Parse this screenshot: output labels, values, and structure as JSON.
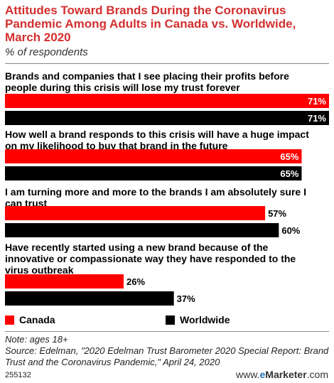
{
  "title": "Attitudes Toward Brands During the Coronavirus Pandemic Among Adults in Canada vs. Worldwide, March 2020",
  "subtitle": "% of respondents",
  "colors": {
    "canada": "#ff0000",
    "worldwide": "#000000",
    "title": "#d32f2f"
  },
  "legend": [
    {
      "name": "Canada",
      "color": "#ff0000"
    },
    {
      "name": "Worldwide",
      "color": "#000000"
    }
  ],
  "chart_data": {
    "type": "bar",
    "orientation": "horizontal",
    "categories": [
      "Brands and companies that I see placing their profits before people during this crisis will lose my trust forever",
      "How well a brand responds to this crisis will have a huge impact on my likelihood to buy that brand in the future",
      "I am turning more and more to the brands I am absolutely sure I can trust",
      "Have recently started using a new brand because of the innovative or compassionate way they have responded to the virus outbreak"
    ],
    "series": [
      {
        "name": "Canada",
        "values": [
          71,
          65,
          57,
          26
        ]
      },
      {
        "name": "Worldwide",
        "values": [
          71,
          65,
          60,
          37
        ]
      }
    ],
    "value_labels": {
      "Canada": [
        "71%",
        "65%",
        "57%",
        "26%"
      ],
      "Worldwide": [
        "71%",
        "65%",
        "60%",
        "37%"
      ]
    },
    "xlim": [
      0,
      71
    ],
    "grid": false,
    "legend_position": "bottom-left"
  },
  "footer": {
    "note": "Note: ages 18+",
    "source": "Source: Edelman, \"2020 Edelman Trust Barometer 2020 Special Report: Brand Trust and the Coronavirus Pandemic,\" April 24, 2020",
    "code": "255132",
    "brand_prefix": "www.",
    "brand_accent": "e",
    "brand_main": "Marketer",
    "brand_suffix": ".com"
  }
}
